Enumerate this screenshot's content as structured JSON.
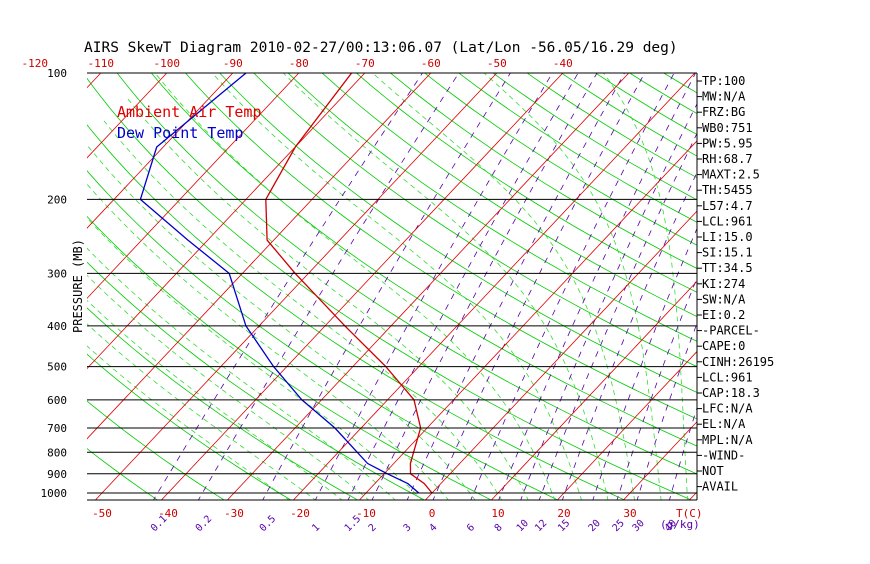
{
  "chart_data": {
    "type": "line",
    "title": "AIRS SkewT Diagram 2010-02-27/00:13:06.07 (Lat/Lon -56.05/16.29 deg)",
    "ylabel": "PRESSURE (MB)",
    "y_scale": "log",
    "ylim": [
      1000,
      100
    ],
    "y_ticks": [
      100,
      200,
      300,
      400,
      500,
      600,
      700,
      800,
      900,
      1000
    ],
    "top_temp_ticks": [
      -120,
      -110,
      -100,
      -90,
      -80,
      -70,
      -60,
      -50,
      -40
    ],
    "bottom_temp_ticks": [
      -50,
      -40,
      -30,
      -20,
      -10,
      0,
      10,
      20,
      30
    ],
    "bottom_temp_unit": "T(C)",
    "mixing_ratio_ticks": [
      "0.1",
      "0.2",
      "0.5",
      "1",
      "1.5",
      "2",
      "3",
      "4",
      "6",
      "8",
      "10",
      "12",
      "15",
      "20",
      "25",
      "30",
      "40"
    ],
    "mixing_ratio_unit": "(g/kg)",
    "annotations": [
      {
        "text": "Ambient Air Temp",
        "color": "#dd0000"
      },
      {
        "text": "Dew Point Temp",
        "color": "#0000cc"
      }
    ],
    "series": [
      {
        "name": "Ambient Air Temp",
        "color": "#cc0000",
        "points": [
          [
            1000,
            0
          ],
          [
            950,
            -2.5
          ],
          [
            900,
            -6
          ],
          [
            850,
            -7.5
          ],
          [
            700,
            -11
          ],
          [
            600,
            -16
          ],
          [
            500,
            -25
          ],
          [
            400,
            -37
          ],
          [
            300,
            -52
          ],
          [
            250,
            -61
          ],
          [
            200,
            -67
          ],
          [
            150,
            -70
          ],
          [
            100,
            -72
          ]
        ]
      },
      {
        "name": "Dew Point Temp",
        "color": "#0000cc",
        "points": [
          [
            1000,
            -2
          ],
          [
            950,
            -5
          ],
          [
            900,
            -9.5
          ],
          [
            850,
            -14
          ],
          [
            700,
            -24
          ],
          [
            600,
            -33
          ],
          [
            500,
            -42
          ],
          [
            400,
            -52
          ],
          [
            300,
            -62
          ],
          [
            250,
            -73
          ],
          [
            200,
            -86
          ],
          [
            150,
            -91
          ],
          [
            100,
            -88
          ]
        ]
      }
    ],
    "indices": [
      "TP:100",
      "MW:N/A",
      "FRZ:BG",
      "WB0:751",
      "PW:5.95",
      "RH:68.7",
      "MAXT:2.5",
      "TH:5455",
      "L57:4.7",
      "LCL:961",
      "LI:15.0",
      "SI:15.1",
      "TT:34.5",
      "KI:274",
      "SW:N/A",
      "EI:0.2",
      "-PARCEL-",
      "CAPE:0",
      "CINH:26195",
      "LCL:961",
      "CAP:18.3",
      "LFC:N/A",
      "EL:N/A",
      "MPL:N/A",
      "-WIND-",
      "NOT",
      "AVAIL"
    ],
    "colors": {
      "isotherm": "#dd0000",
      "dry_adiabat": "#00cc00",
      "moist_adiabat": "#33dd33",
      "mixing_ratio": "#5500aa",
      "temperature": "#cc0000",
      "dewpoint": "#0000cc",
      "tick_labels": "#cc0000",
      "text": "#000000"
    }
  }
}
